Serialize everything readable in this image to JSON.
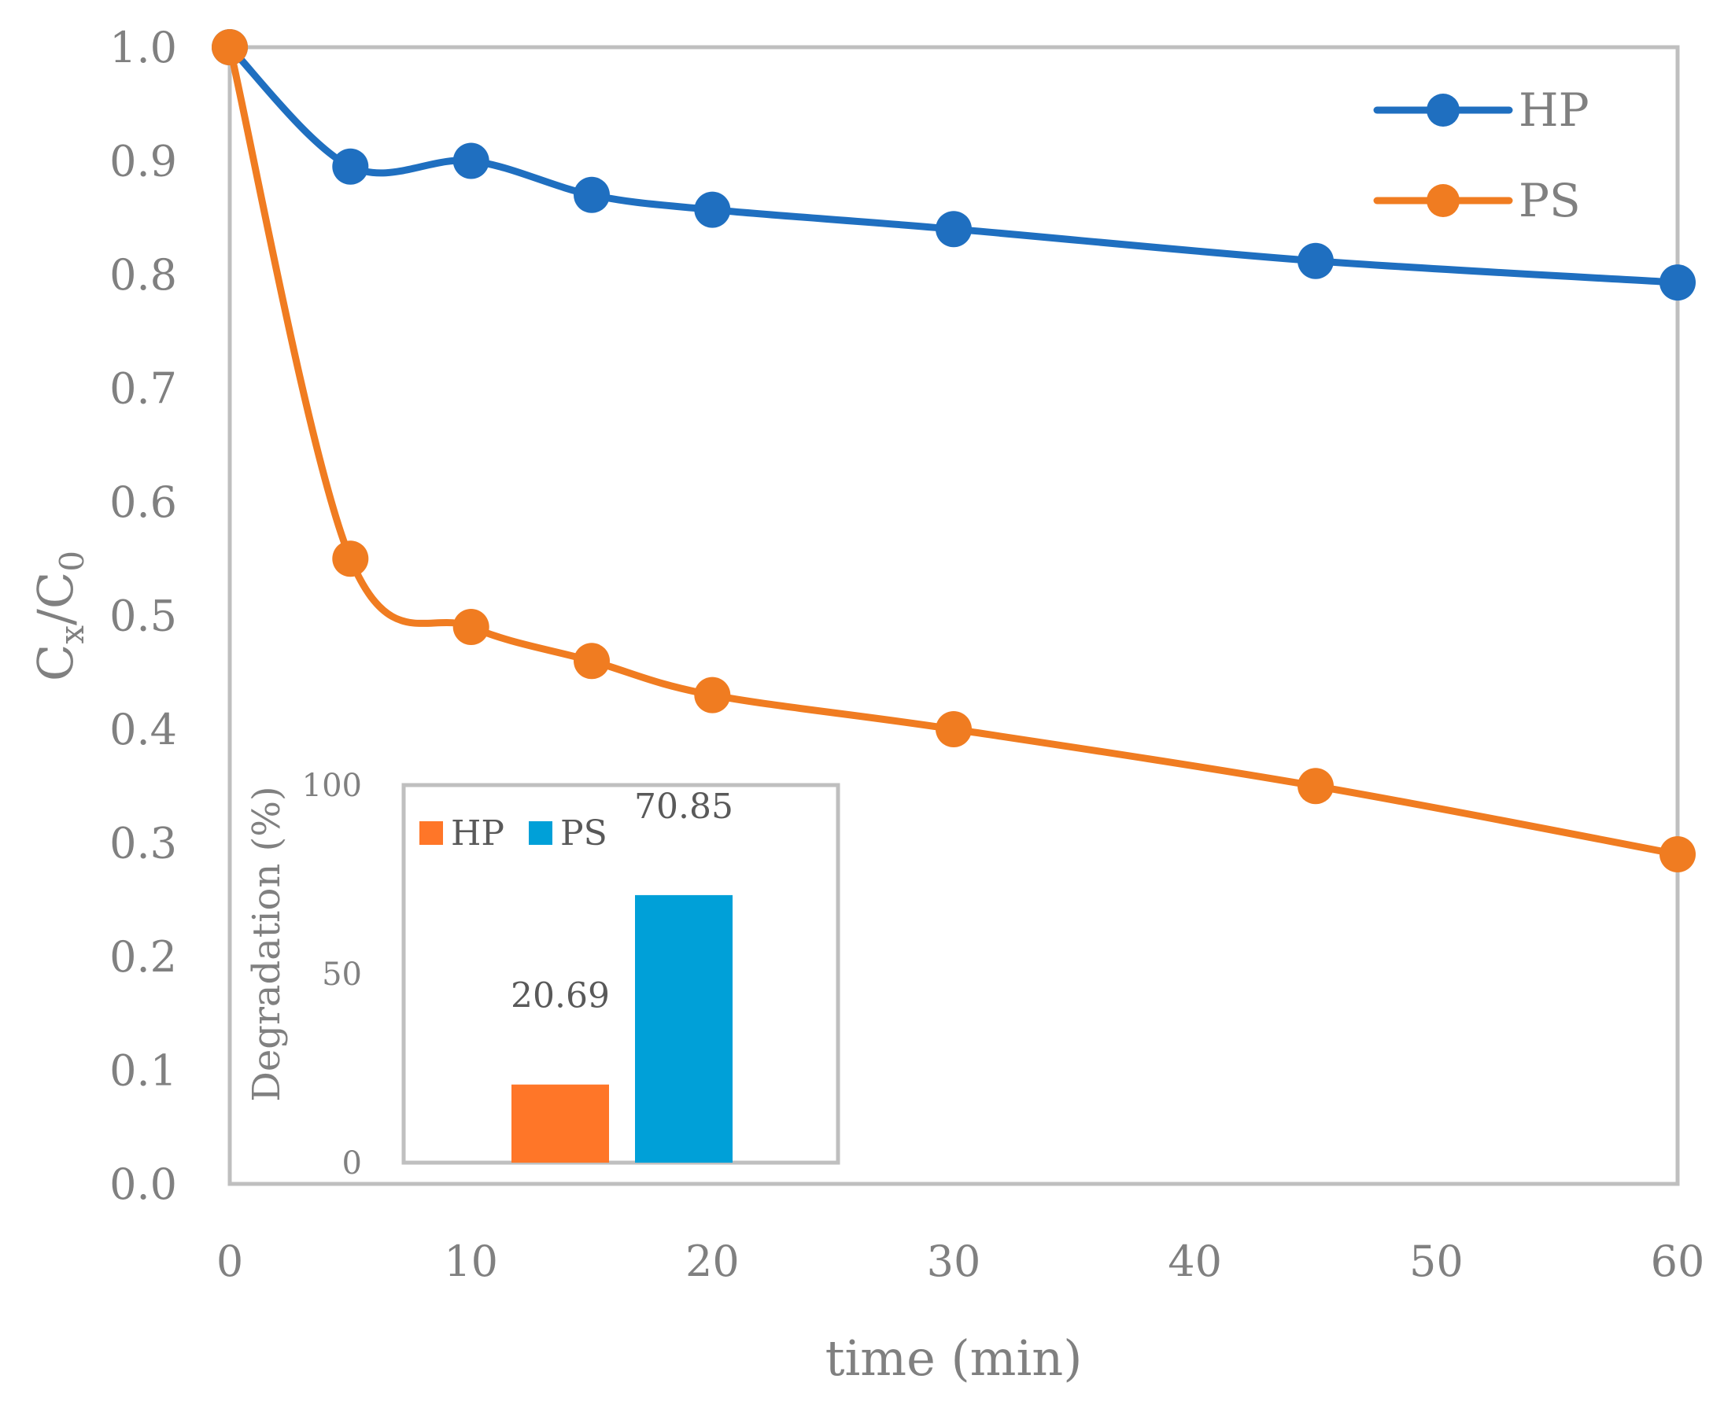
{
  "chart_data": [
    {
      "type": "line",
      "xlabel": "time (min)",
      "ylabel": {
        "main": "C",
        "sub1": "x",
        "sep": "/C",
        "sub2": "0"
      },
      "xlim": [
        0,
        60
      ],
      "ylim": [
        0.0,
        1.0
      ],
      "x_ticks": [
        "0",
        "10",
        "20",
        "30",
        "40",
        "50",
        "60"
      ],
      "y_ticks": [
        "0.0",
        "0.1",
        "0.2",
        "0.3",
        "0.4",
        "0.5",
        "0.6",
        "0.7",
        "0.8",
        "0.9",
        "1.0"
      ],
      "legend_position": "top-right",
      "grid": false,
      "x": [
        0,
        5,
        10,
        15,
        20,
        30,
        45,
        60
      ],
      "series": [
        {
          "name": "HP",
          "color": "#1F6FC0",
          "values": [
            1.0,
            0.895,
            0.9,
            0.87,
            0.857,
            0.84,
            0.812,
            0.793
          ]
        },
        {
          "name": "PS",
          "color": "#F07C21",
          "values": [
            1.0,
            0.55,
            0.49,
            0.46,
            0.43,
            0.4,
            0.35,
            0.29
          ]
        }
      ]
    },
    {
      "type": "bar",
      "ylabel": "Degradation  (%)",
      "ylim": [
        0,
        100
      ],
      "y_ticks": [
        "0",
        "50",
        "100"
      ],
      "legend_position": "top-left",
      "series": [
        {
          "name": "HP",
          "color": "#FF7628",
          "value": 20.69,
          "label": "20.69"
        },
        {
          "name": "PS",
          "color": "#00A0D8",
          "value": 70.85,
          "label": "70.85"
        }
      ]
    }
  ]
}
